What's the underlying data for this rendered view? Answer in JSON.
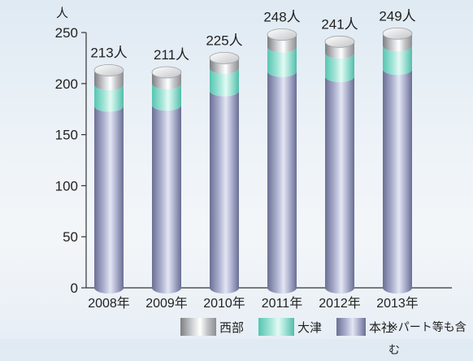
{
  "chart_data": {
    "type": "bar",
    "stacked": true,
    "style": "3d-cylinder",
    "y_unit": "人",
    "ylim": [
      0,
      250
    ],
    "yticks": [
      0,
      50,
      100,
      150,
      200,
      250
    ],
    "categories": [
      "2008年",
      "2009年",
      "2010年",
      "2011年",
      "2012年",
      "2013年"
    ],
    "series": [
      {
        "name": "本社",
        "color": "#9ea2c4",
        "values": [
          178,
          179,
          193,
          212,
          207,
          214
        ]
      },
      {
        "name": "大津",
        "color": "#8ed8c9",
        "values": [
          21,
          21,
          22,
          24,
          23,
          23
        ]
      },
      {
        "name": "西部",
        "color": "#c9cbce",
        "values": [
          14,
          11,
          10,
          12,
          11,
          12
        ]
      }
    ],
    "totals": [
      "213人",
      "211人",
      "225人",
      "248人",
      "241人",
      "249人"
    ],
    "legend_position": "bottom",
    "grid": false
  },
  "legend": {
    "items": [
      {
        "label": "西部"
      },
      {
        "label": "大津"
      },
      {
        "label": "本社"
      }
    ],
    "note": "※パート等も含む"
  }
}
